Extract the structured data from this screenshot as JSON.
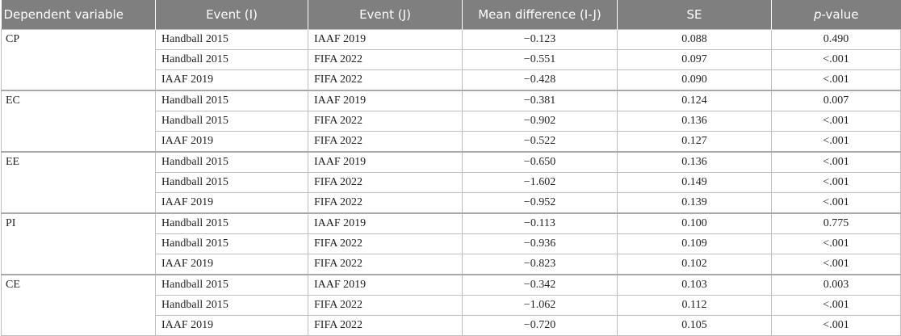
{
  "table": {
    "headers": {
      "dependent_variable": "Dependent variable",
      "event_i": "Event (I)",
      "event_j": "Event (J)",
      "mean_difference": "Mean difference (I-J)",
      "se": "SE",
      "p_prefix": "p",
      "p_suffix": "-value"
    },
    "groups": [
      {
        "variable": "CP",
        "rows": [
          {
            "event_i": "Handball 2015",
            "event_j": "IAAF 2019",
            "mean_diff": "−0.123",
            "se": "0.088",
            "p": "0.490"
          },
          {
            "event_i": "Handball 2015",
            "event_j": "FIFA 2022",
            "mean_diff": "−0.551",
            "se": "0.097",
            "p": "<.001"
          },
          {
            "event_i": "IAAF 2019",
            "event_j": "FIFA 2022",
            "mean_diff": "−0.428",
            "se": "0.090",
            "p": "<.001"
          }
        ]
      },
      {
        "variable": "EC",
        "rows": [
          {
            "event_i": "Handball 2015",
            "event_j": "IAAF 2019",
            "mean_diff": "−0.381",
            "se": "0.124",
            "p": "0.007"
          },
          {
            "event_i": "Handball 2015",
            "event_j": "FIFA 2022",
            "mean_diff": "−0.902",
            "se": "0.136",
            "p": "<.001"
          },
          {
            "event_i": "IAAF 2019",
            "event_j": "FIFA 2022",
            "mean_diff": "−0.522",
            "se": "0.127",
            "p": "<.001"
          }
        ]
      },
      {
        "variable": "EE",
        "rows": [
          {
            "event_i": "Handball 2015",
            "event_j": "IAAF 2019",
            "mean_diff": "−0.650",
            "se": "0.136",
            "p": "<.001"
          },
          {
            "event_i": "Handball 2015",
            "event_j": "FIFA 2022",
            "mean_diff": "−1.602",
            "se": "0.149",
            "p": "<.001"
          },
          {
            "event_i": "IAAF 2019",
            "event_j": "FIFA 2022",
            "mean_diff": "−0.952",
            "se": "0.139",
            "p": "<.001"
          }
        ]
      },
      {
        "variable": "PI",
        "rows": [
          {
            "event_i": "Handball 2015",
            "event_j": "IAAF 2019",
            "mean_diff": "−0.113",
            "se": "0.100",
            "p": "0.775"
          },
          {
            "event_i": "Handball 2015",
            "event_j": "FIFA 2022",
            "mean_diff": "−0.936",
            "se": "0.109",
            "p": "<.001"
          },
          {
            "event_i": "IAAF 2019",
            "event_j": "FIFA 2022",
            "mean_diff": "−0.823",
            "se": "0.102",
            "p": "<.001"
          }
        ]
      },
      {
        "variable": "CE",
        "rows": [
          {
            "event_i": "Handball 2015",
            "event_j": "IAAF 2019",
            "mean_diff": "−0.342",
            "se": "0.103",
            "p": "0.003"
          },
          {
            "event_i": "Handball 2015",
            "event_j": "FIFA 2022",
            "mean_diff": "−1.062",
            "se": "0.112",
            "p": "<.001"
          },
          {
            "event_i": "IAAF 2019",
            "event_j": "FIFA 2022",
            "mean_diff": "−0.720",
            "se": "0.105",
            "p": "<.001"
          }
        ]
      }
    ]
  },
  "colors": {
    "header_background": "#7f7f7f",
    "header_text": "#ffffff",
    "cell_border": "#bdbdbd"
  }
}
